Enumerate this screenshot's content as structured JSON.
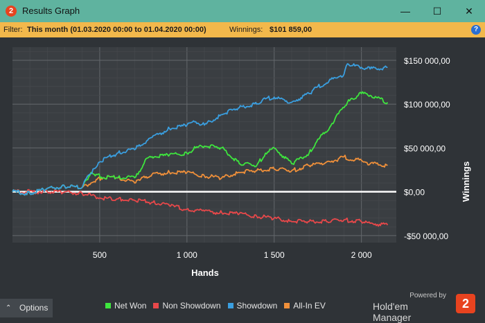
{
  "window": {
    "app_icon_label": "2",
    "title": "Results Graph",
    "minimize_glyph": "—",
    "maximize_glyph": "☐",
    "close_glyph": "✕"
  },
  "filter_bar": {
    "filter_label": "Filter:",
    "filter_value": "This month (01.03.2020 00:00 to 01.04.2020 00:00)",
    "winnings_label": "Winnings:",
    "winnings_value": "$101 859,00",
    "help_glyph": "?",
    "background_color": "#f2b84b"
  },
  "chart_data": {
    "type": "line",
    "xlabel": "Hands",
    "ylabel": "Winnings",
    "xlim": [
      0,
      2200
    ],
    "ylim": [
      -58000,
      165000
    ],
    "x_ticks": [
      500,
      1000,
      1500,
      2000
    ],
    "x_tick_labels": [
      "500",
      "1 000",
      "1 500",
      "2 000"
    ],
    "y_ticks": [
      150000,
      100000,
      50000,
      0,
      -50000
    ],
    "y_tick_labels": [
      "$150 000,00",
      "$100 000,00",
      "$50 000,00",
      "$0,00",
      "-$50 000,00"
    ],
    "grid": true,
    "legend_position": "bottom",
    "series": [
      {
        "name": "Net Won",
        "color": "#3ee63e",
        "x": [
          0,
          100,
          200,
          300,
          400,
          450,
          480,
          520,
          600,
          700,
          720,
          760,
          800,
          900,
          1000,
          1050,
          1100,
          1200,
          1300,
          1400,
          1450,
          1500,
          1600,
          1700,
          1750,
          1800,
          1850,
          1900,
          1920,
          1950,
          2000,
          2050,
          2150
        ],
        "y": [
          0,
          -2000,
          4000,
          6000,
          5000,
          22000,
          20000,
          16000,
          16000,
          16000,
          20000,
          36000,
          40000,
          42000,
          44000,
          50000,
          52000,
          50000,
          32000,
          30000,
          44000,
          50000,
          32000,
          44000,
          60000,
          68000,
          84000,
          96000,
          102000,
          106000,
          112000,
          110000,
          102000
        ]
      },
      {
        "name": "Non Showdown",
        "color": "#e8484a",
        "x": [
          0,
          200,
          300,
          400,
          450,
          500,
          600,
          700,
          800,
          900,
          1000,
          1100,
          1200,
          1300,
          1400,
          1500,
          1600,
          1700,
          1800,
          1900,
          2000,
          2050,
          2150
        ],
        "y": [
          0,
          0,
          0,
          -2000,
          -4000,
          -7000,
          -8000,
          -10000,
          -12000,
          -16000,
          -20000,
          -22000,
          -24000,
          -25000,
          -28000,
          -30000,
          -34000,
          -34000,
          -34000,
          -32000,
          -34000,
          -36000,
          -38000
        ]
      },
      {
        "name": "Showdown",
        "color": "#3a9fe0",
        "x": [
          0,
          100,
          200,
          300,
          400,
          430,
          480,
          500,
          600,
          700,
          720,
          800,
          900,
          1000,
          1050,
          1100,
          1200,
          1300,
          1400,
          1450,
          1500,
          1600,
          1700,
          1750,
          1800,
          1850,
          1900,
          1920,
          1950,
          2000,
          2050,
          2150
        ],
        "y": [
          0,
          -2000,
          4000,
          6000,
          5000,
          18000,
          28000,
          34000,
          44000,
          48000,
          52000,
          62000,
          72000,
          76000,
          80000,
          76000,
          88000,
          96000,
          100000,
          106000,
          108000,
          102000,
          112000,
          120000,
          124000,
          130000,
          134000,
          146000,
          144000,
          142000,
          140000,
          142000
        ]
      },
      {
        "name": "All-In EV",
        "color": "#f0903a",
        "x": [
          0,
          100,
          200,
          300,
          400,
          450,
          480,
          520,
          600,
          700,
          760,
          800,
          900,
          1000,
          1100,
          1200,
          1300,
          1400,
          1500,
          1600,
          1700,
          1800,
          1850,
          1900,
          1950,
          2000,
          2050,
          2150
        ],
        "y": [
          0,
          -2000,
          4000,
          6000,
          5000,
          10000,
          14000,
          16000,
          16000,
          10000,
          16000,
          20000,
          22000,
          22000,
          18000,
          16000,
          22000,
          24000,
          26000,
          24000,
          30000,
          34000,
          36000,
          40000,
          36000,
          36000,
          32000,
          30000
        ]
      }
    ]
  },
  "footer": {
    "options_chevron": "⌃",
    "options_label": "Options",
    "powered_by": "Powered by",
    "brand_name": "Hold'em Manager",
    "logo_label": "2"
  }
}
